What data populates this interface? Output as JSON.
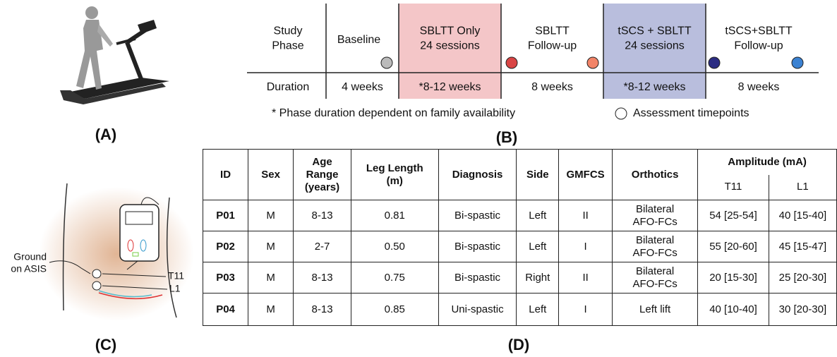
{
  "panels": {
    "a": "(A)",
    "b": "(B)",
    "c": "(C)",
    "d": "(D)"
  },
  "timeline": {
    "row_labels": [
      [
        "Study",
        "Phase"
      ],
      [
        "Duration"
      ]
    ],
    "phases": [
      {
        "name": [
          "Baseline"
        ],
        "duration": "4 weeks"
      },
      {
        "name": [
          "SBLTT Only",
          "24 sessions"
        ],
        "duration": "*8-12 weeks"
      },
      {
        "name": [
          "SBLTT",
          "Follow-up"
        ],
        "duration": "8 weeks"
      },
      {
        "name": [
          "tSCS + SBLTT",
          "24 sessions"
        ],
        "duration": "*8-12 weeks"
      },
      {
        "name": [
          "tSCS+SBLTT",
          "Follow-up"
        ],
        "duration": "8 weeks"
      }
    ],
    "footnote": "* Phase duration dependent on family availability",
    "legend": "Assessment timepoints"
  },
  "diagram": {
    "ground": [
      "Ground",
      "on ASIS"
    ],
    "t11": "T11",
    "l1": "L1"
  },
  "table": {
    "headers": [
      [
        "ID"
      ],
      [
        "Sex"
      ],
      [
        "Age",
        "Range",
        "(years)"
      ],
      [
        "Leg Length",
        "(m)"
      ],
      [
        "Diagnosis"
      ],
      [
        "Side"
      ],
      [
        "GMFCS"
      ],
      [
        "Orthotics"
      ]
    ],
    "amplitude_header": "Amplitude (mA)",
    "sub_headers": [
      "T11",
      "L1"
    ],
    "rows": [
      [
        "P01",
        "M",
        "8-13",
        "0.81",
        "Bi-spastic",
        "Left",
        "II",
        [
          "Bilateral",
          "AFO-FCs"
        ],
        "54 [25-54]",
        "40 [15-40]"
      ],
      [
        "P02",
        "M",
        "2-7",
        "0.50",
        "Bi-spastic",
        "Left",
        "I",
        [
          "Bilateral",
          "AFO-FCs"
        ],
        "55 [20-60]",
        "45 [15-47]"
      ],
      [
        "P03",
        "M",
        "8-13",
        "0.75",
        "Bi-spastic",
        "Right",
        "II",
        [
          "Bilateral",
          "AFO-FCs"
        ],
        "20 [15-30]",
        "25 [20-30]"
      ],
      [
        "P04",
        "M",
        "8-13",
        "0.85",
        "Uni-spastic",
        "Left",
        "I",
        [
          "Left lift"
        ],
        "40 [10-40]",
        "30 [20-30]"
      ]
    ]
  }
}
